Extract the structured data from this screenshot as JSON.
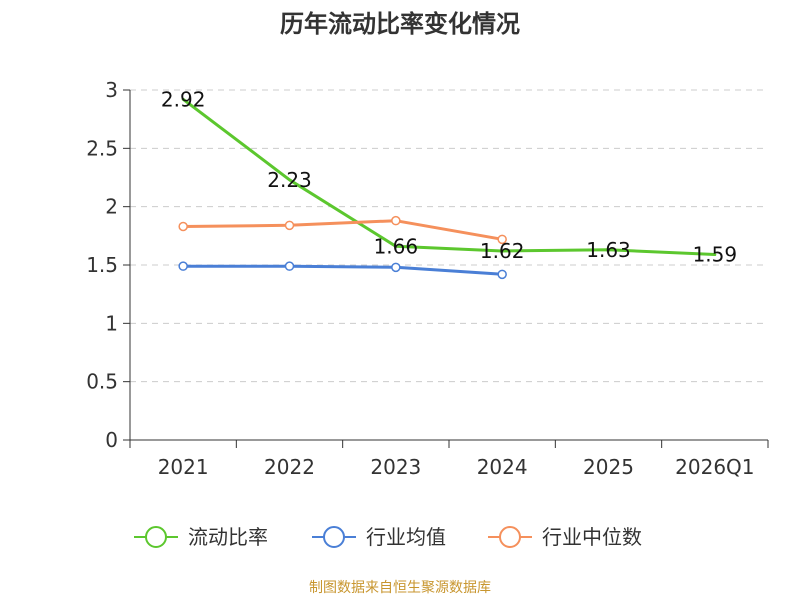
{
  "title": "历年流动比率变化情况",
  "source": "制图数据来自恒生聚源数据库",
  "chart_data": {
    "type": "line",
    "title": "历年流动比率变化情况",
    "xlabel": "",
    "ylabel": "",
    "categories": [
      "2021",
      "2022",
      "2023",
      "2024",
      "2025",
      "2026Q1"
    ],
    "ylim": [
      0,
      3
    ],
    "yticks": [
      0,
      0.5,
      1,
      1.5,
      2,
      2.5,
      3
    ],
    "ytick_labels": [
      "0",
      "0.5",
      "1",
      "1.5",
      "2",
      "2.5",
      "3"
    ],
    "grid": true,
    "legend_position": "bottom",
    "series": [
      {
        "name": "流动比率",
        "color": "#5cc72e",
        "values": [
          2.92,
          2.23,
          1.66,
          1.62,
          1.63,
          1.59
        ],
        "labels": [
          "2.92",
          "2.23",
          "1.66",
          "1.62",
          "1.63",
          "1.59"
        ],
        "markers": false
      },
      {
        "name": "行业均值",
        "color": "#4a7fd6",
        "values": [
          1.49,
          1.49,
          1.48,
          1.42,
          null,
          null
        ],
        "markers": true
      },
      {
        "name": "行业中位数",
        "color": "#f5905c",
        "values": [
          1.83,
          1.84,
          1.88,
          1.72,
          null,
          null
        ],
        "markers": true
      }
    ]
  }
}
